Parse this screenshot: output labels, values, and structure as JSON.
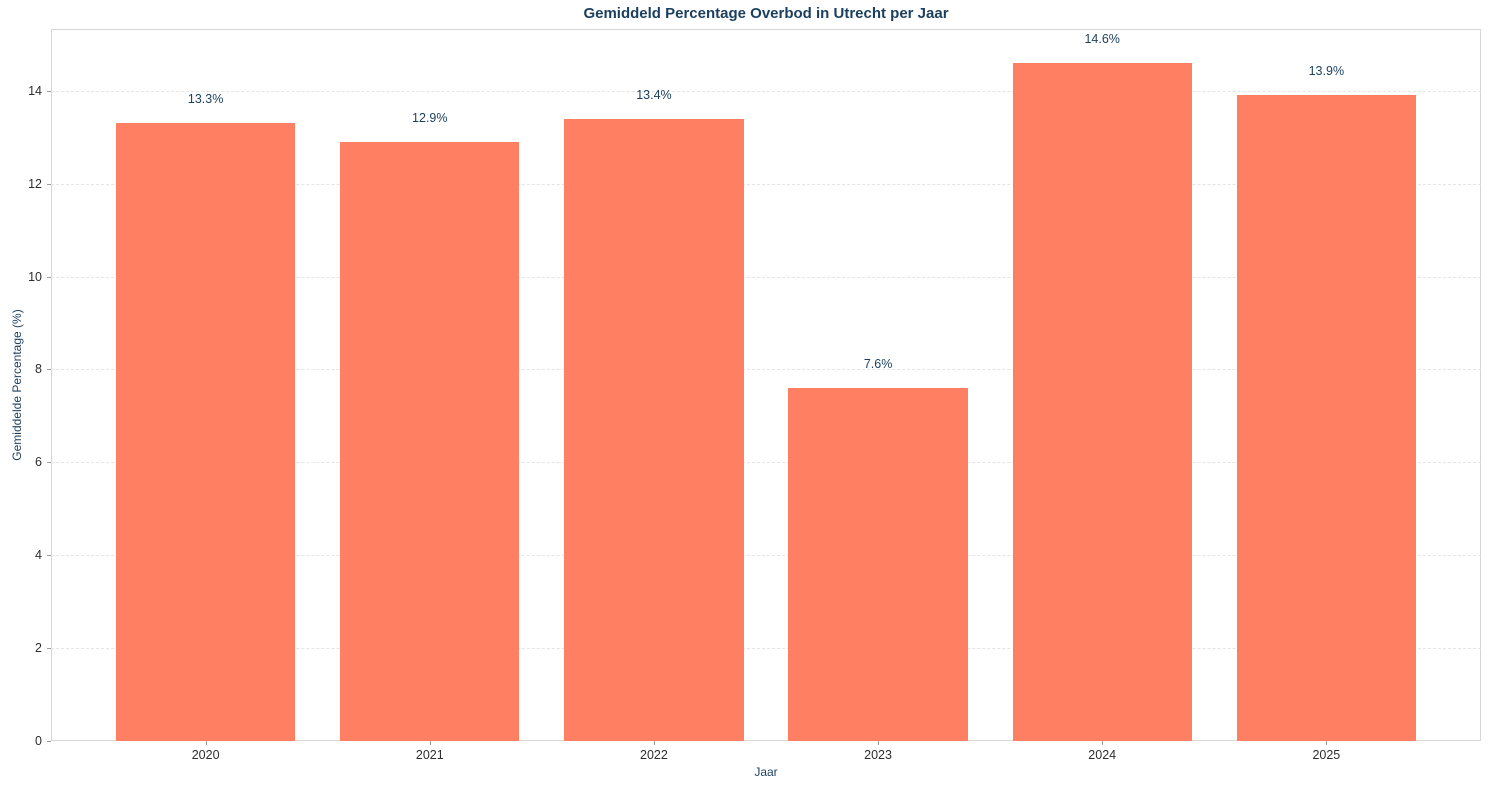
{
  "chart_data": {
    "type": "bar",
    "title": "Gemiddeld Percentage Overbod in Utrecht per Jaar",
    "xlabel": "Jaar",
    "ylabel": "Gemiddelde Percentage (%)",
    "categories": [
      "2020",
      "2021",
      "2022",
      "2023",
      "2024",
      "2025"
    ],
    "values": [
      13.3,
      12.9,
      13.4,
      7.6,
      14.6,
      13.9
    ],
    "value_labels": [
      "13.3%",
      "12.9%",
      "13.4%",
      "7.6%",
      "14.6%",
      "13.9%"
    ],
    "yticks": [
      0,
      2,
      4,
      6,
      8,
      10,
      12,
      14
    ],
    "ylim": [
      0,
      15.33
    ],
    "grid": "horizontal-dashed",
    "legend": null,
    "colors": {
      "bar": "#ff7f62",
      "title_text": "#1b3f5e",
      "axis_label_text": "#1b3f5e",
      "value_label_text": "#1b3f5e",
      "tick_text": "#2e2e2e",
      "gridline": "#e4e4e4",
      "spine": "#d6d6d6",
      "background": "#ffffff"
    }
  }
}
